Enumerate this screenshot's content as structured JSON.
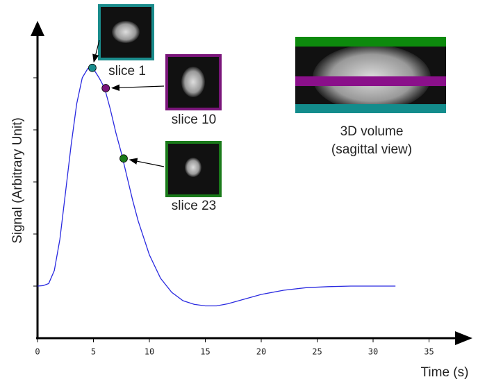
{
  "chart_data": {
    "type": "line",
    "y_label": "Signal (Arbitrary Unit)",
    "x_label": "Time (s)",
    "x": [
      0,
      0.5,
      1,
      1.5,
      2,
      2.5,
      3,
      3.5,
      4,
      4.5,
      5,
      5.5,
      6,
      6.5,
      7,
      7.5,
      8,
      8.5,
      9,
      10,
      11,
      12,
      13,
      14,
      15,
      16,
      17,
      18,
      19,
      20,
      22,
      24,
      26,
      28,
      30,
      32
    ],
    "series": [
      {
        "color": "#2a2ae0",
        "values": [
          1.0,
          1.01,
          1.05,
          1.3,
          1.9,
          2.8,
          3.7,
          4.5,
          5.0,
          5.18,
          5.17,
          5.0,
          4.8,
          4.4,
          3.95,
          3.55,
          3.1,
          2.65,
          2.25,
          1.6,
          1.15,
          0.88,
          0.72,
          0.65,
          0.62,
          0.62,
          0.66,
          0.72,
          0.78,
          0.84,
          0.92,
          0.97,
          0.99,
          1.0,
          1.0,
          1.0
        ]
      }
    ],
    "xlim": [
      0,
      38
    ],
    "xticks": [
      0,
      5,
      10,
      15,
      20,
      25,
      30,
      35
    ],
    "ylim": [
      0,
      5.9
    ],
    "yticks": [
      1,
      2,
      3,
      4,
      5
    ],
    "markers": [
      {
        "label": "slice 1",
        "x": 4.9,
        "y": 5.19,
        "color": "#1a8c8c"
      },
      {
        "label": "slice 10",
        "x": 6.1,
        "y": 4.8,
        "color": "#7a157a"
      },
      {
        "label": "slice 23",
        "x": 7.7,
        "y": 3.45,
        "color": "#1a7a1a"
      }
    ],
    "volume_label": "3D volume",
    "volume_sublabel": "(sagittal view)"
  }
}
